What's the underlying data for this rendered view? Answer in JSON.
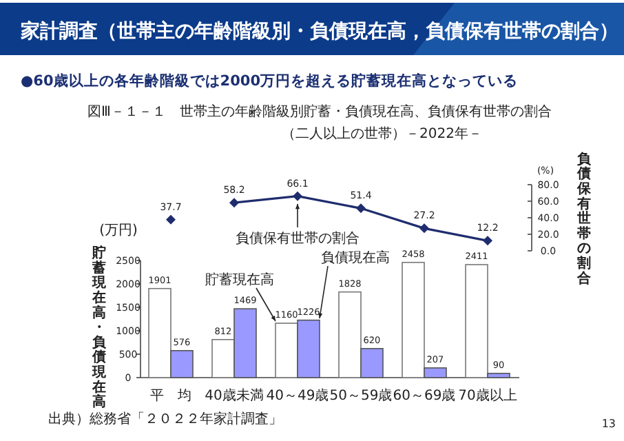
{
  "chart_data": [
    {
      "type": "line",
      "title": "図Ⅲ－１－１　世帯主の年齢階級別貯蓄・負債現在高、負債保有世帯の割合",
      "subtitle": "（二人以上の世帯）－2022年－",
      "categories": [
        null,
        null,
        null,
        null,
        null,
        null
      ],
      "series": [
        {
          "color": "#1f2d6e",
          "values": [
            37.7,
            null,
            null,
            null,
            null,
            null
          ]
        },
        {
          "color": "#1f2d6e",
          "values": [
            null,
            58.2,
            66.1,
            51.4,
            27.2,
            12.2
          ]
        }
      ],
      "ylabel": "負債保有世帯の割合",
      "ylim": [
        0,
        80
      ],
      "yticks": [
        {
          "value": 0,
          "label": "0.0"
        },
        {
          "value": 20,
          "label": "20.0"
        },
        {
          "value": 40,
          "label": "40.0"
        },
        {
          "value": 60,
          "label": "60.0"
        },
        {
          "value": 80,
          "label": "80.0"
        }
      ],
      "tick_labels": "y",
      "marker": "diamond",
      "data_labels": true,
      "annotations": [
        "家計調査（世帯主の年齢階級別・負債現在高，負債保有世帯の割合）",
        "●60歳以上の各年齢階級では2000万円を超える貯蓄現在高となっている",
        "(%)",
        "負債保有世帯の割合",
        "13"
      ]
    },
    {
      "type": "bar",
      "categories": [
        "平　均",
        "40歳未満",
        "40～49歳",
        "50～59歳",
        "60～69歳",
        "70歳以上"
      ],
      "series": [
        {
          "color": "#ffffff",
          "values": [
            1901,
            812,
            1160,
            1828,
            2458,
            2411
          ]
        },
        {
          "color": "#9999ff",
          "values": [
            576,
            1469,
            1226,
            620,
            207,
            90
          ]
        }
      ],
      "ylabel": "貯蓄現在高・負債現在高",
      "ylim": [
        0,
        2500
      ],
      "yticks": [
        0,
        500,
        1000,
        1500,
        2000,
        2500
      ],
      "data_labels": true,
      "annotations": [
        "(万円)",
        "貯蓄現在高",
        "負債現在高",
        "出典）総務省「２０２２年家計調査」"
      ]
    }
  ]
}
